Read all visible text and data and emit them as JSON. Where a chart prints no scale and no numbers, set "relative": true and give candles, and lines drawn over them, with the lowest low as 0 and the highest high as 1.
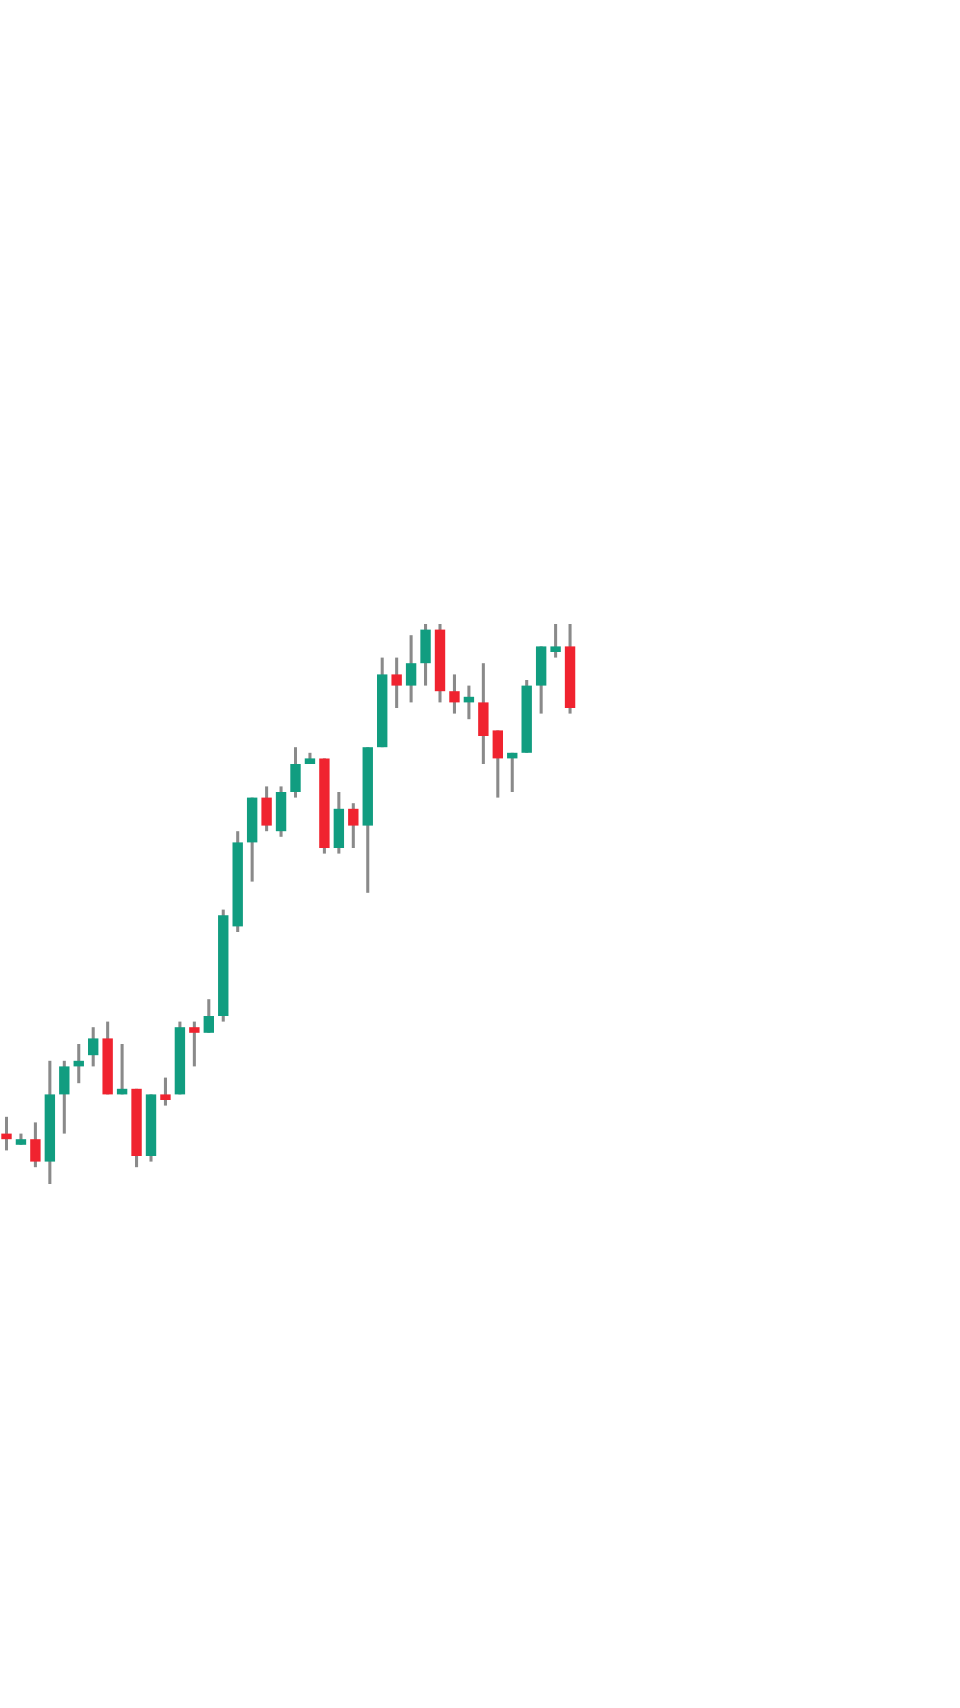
{
  "chart_data": {
    "type": "candlestick",
    "relative": true,
    "categories": [
      null,
      null,
      null,
      null,
      null,
      null,
      null,
      null,
      null,
      null,
      null,
      null,
      null,
      null,
      null,
      null,
      null,
      null,
      null,
      null,
      null,
      null,
      null,
      null,
      null,
      null,
      null,
      null,
      null,
      null,
      null,
      null,
      null,
      null,
      null,
      null,
      null,
      null,
      null,
      null
    ],
    "ohlc": [
      [
        0.09,
        0.12,
        0.06,
        0.08
      ],
      [
        0.07,
        0.09,
        0.07,
        0.08
      ],
      [
        0.08,
        0.11,
        0.03,
        0.04
      ],
      [
        0.04,
        0.22,
        0.0,
        0.16
      ],
      [
        0.16,
        0.22,
        0.09,
        0.21
      ],
      [
        0.21,
        0.25,
        0.18,
        0.22
      ],
      [
        0.23,
        0.28,
        0.21,
        0.26
      ],
      [
        0.26,
        0.29,
        0.16,
        0.16
      ],
      [
        0.16,
        0.25,
        0.16,
        0.17
      ],
      [
        0.17,
        0.17,
        0.03,
        0.05
      ],
      [
        0.05,
        0.16,
        0.04,
        0.16
      ],
      [
        0.16,
        0.19,
        0.14,
        0.15
      ],
      [
        0.16,
        0.29,
        0.16,
        0.28
      ],
      [
        0.28,
        0.29,
        0.21,
        0.27
      ],
      [
        0.27,
        0.33,
        0.27,
        0.3
      ],
      [
        0.3,
        0.49,
        0.29,
        0.48
      ],
      [
        0.46,
        0.63,
        0.45,
        0.61
      ],
      [
        0.61,
        0.69,
        0.54,
        0.69
      ],
      [
        0.69,
        0.71,
        0.63,
        0.64
      ],
      [
        0.63,
        0.71,
        0.62,
        0.7
      ],
      [
        0.7,
        0.78,
        0.69,
        0.75
      ],
      [
        0.75,
        0.77,
        0.75,
        0.76
      ],
      [
        0.76,
        0.76,
        0.59,
        0.6
      ],
      [
        0.6,
        0.7,
        0.59,
        0.67
      ],
      [
        0.67,
        0.68,
        0.6,
        0.64
      ],
      [
        0.64,
        0.78,
        0.52,
        0.78
      ],
      [
        0.78,
        0.94,
        0.78,
        0.91
      ],
      [
        0.91,
        0.94,
        0.85,
        0.89
      ],
      [
        0.89,
        0.98,
        0.86,
        0.93
      ],
      [
        0.93,
        1.0,
        0.89,
        0.99
      ],
      [
        0.99,
        1.0,
        0.86,
        0.88
      ],
      [
        0.88,
        0.91,
        0.84,
        0.86
      ],
      [
        0.86,
        0.89,
        0.83,
        0.87
      ],
      [
        0.86,
        0.93,
        0.75,
        0.8
      ],
      [
        0.81,
        0.81,
        0.69,
        0.76
      ],
      [
        0.76,
        0.77,
        0.7,
        0.77
      ],
      [
        0.77,
        0.9,
        0.77,
        0.89
      ],
      [
        0.89,
        0.96,
        0.84,
        0.96
      ],
      [
        0.95,
        1.0,
        0.94,
        0.96
      ],
      [
        0.96,
        1.0,
        0.84,
        0.85
      ]
    ],
    "colors": [
      "#f0232f",
      "#119d80",
      "#f0232f",
      "#119d80",
      "#119d80",
      "#119d80",
      "#119d80",
      "#f0232f",
      "#119d80",
      "#f0232f",
      "#119d80",
      "#f0232f",
      "#119d80",
      "#f0232f",
      "#119d80",
      "#119d80",
      "#119d80",
      "#119d80",
      "#f0232f",
      "#119d80",
      "#119d80",
      "#119d80",
      "#f0232f",
      "#119d80",
      "#f0232f",
      "#119d80",
      "#119d80",
      "#f0232f",
      "#119d80",
      "#119d80",
      "#f0232f",
      "#f0232f",
      "#119d80",
      "#f0232f",
      "#f0232f",
      "#119d80",
      "#119d80",
      "#119d80",
      "#119d80",
      "#f0232f"
    ]
  }
}
